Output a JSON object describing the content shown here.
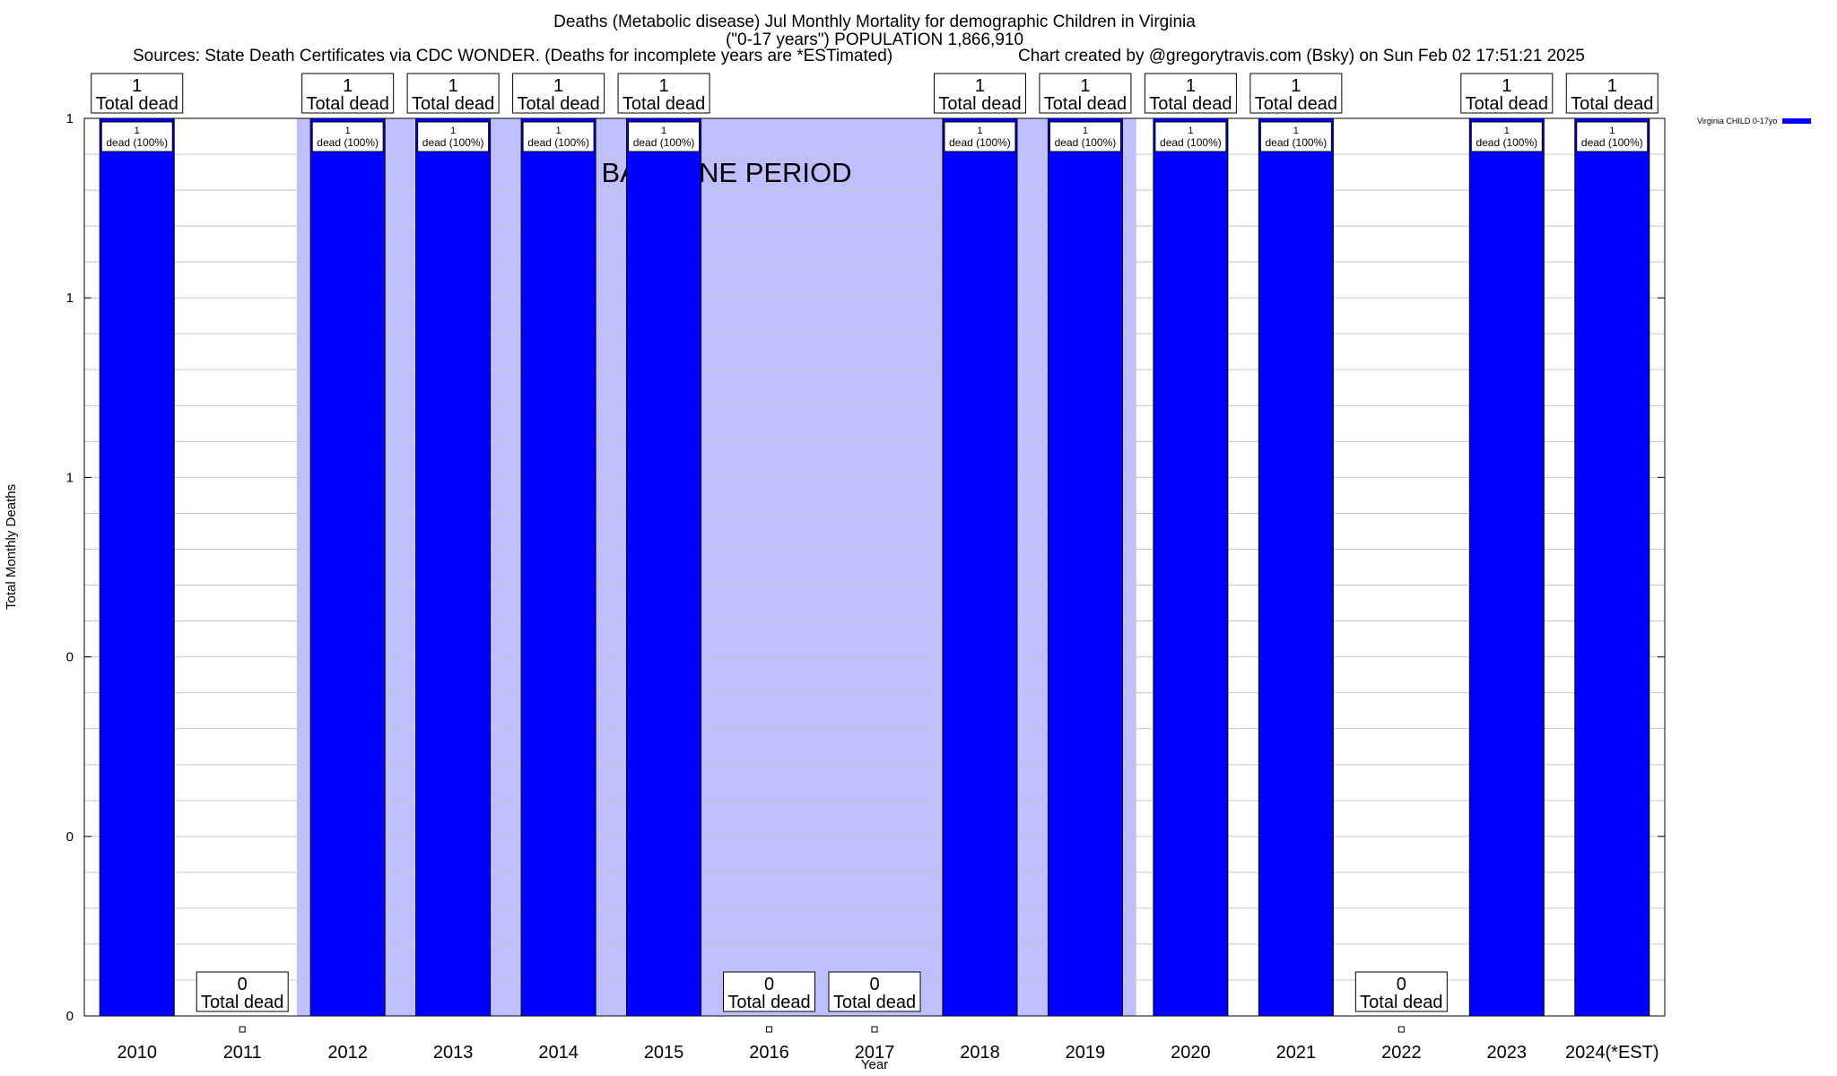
{
  "title_line1": "Deaths (Metabolic disease) Jul Monthly Mortality for demographic Children in Virginia",
  "title_line2": "(\"0-17 years\") POPULATION 1,866,910",
  "sources": "Sources: State Death Certificates via CDC WONDER. (Deaths for incomplete years are *ESTimated)",
  "credit": "Chart created by @gregorytravis.com (Bsky) on Sun Feb 02 17:51:21 2025",
  "colors": {
    "bar": "#0000ff",
    "baseline": "#bfbfff",
    "grid": "#c8c8c8"
  },
  "chart_data": {
    "type": "bar",
    "title": "Deaths (Metabolic disease) Jul Monthly Mortality for demographic Children in Virginia",
    "xlabel": "Year",
    "ylabel": "Total Monthly Deaths",
    "categories": [
      "2010",
      "2011",
      "2012",
      "2013",
      "2014",
      "2015",
      "2016",
      "2017",
      "2018",
      "2019",
      "2020",
      "2021",
      "2022",
      "2023",
      "2024(*EST)"
    ],
    "series": [
      {
        "name": "Virginia CHILD 0-17yo",
        "values": [
          1,
          0,
          1,
          1,
          1,
          1,
          0,
          0,
          1,
          1,
          1,
          1,
          0,
          1,
          1
        ]
      }
    ],
    "ylim": [
      0,
      1
    ],
    "yticks": [
      "0",
      "0",
      "0",
      "1",
      "1",
      "1"
    ],
    "top_label_number": [
      "1",
      "0",
      "1",
      "1",
      "1",
      "1",
      "0",
      "0",
      "1",
      "1",
      "1",
      "1",
      "0",
      "1",
      "1"
    ],
    "top_label_text": "Total dead",
    "bar_inner_count": [
      "1",
      "",
      "1",
      "1",
      "1",
      "1",
      "",
      "",
      "1",
      "1",
      "1",
      "1",
      "",
      "1",
      "1"
    ],
    "bar_inner_text": "dead (100%)",
    "baseline_period_label": "BASELINE PERIOD",
    "baseline_period_categories": [
      "2012",
      "2013",
      "2014",
      "2015",
      "2016",
      "2017",
      "2018",
      "2019"
    ],
    "grid": true,
    "legend_position": "top-right"
  }
}
